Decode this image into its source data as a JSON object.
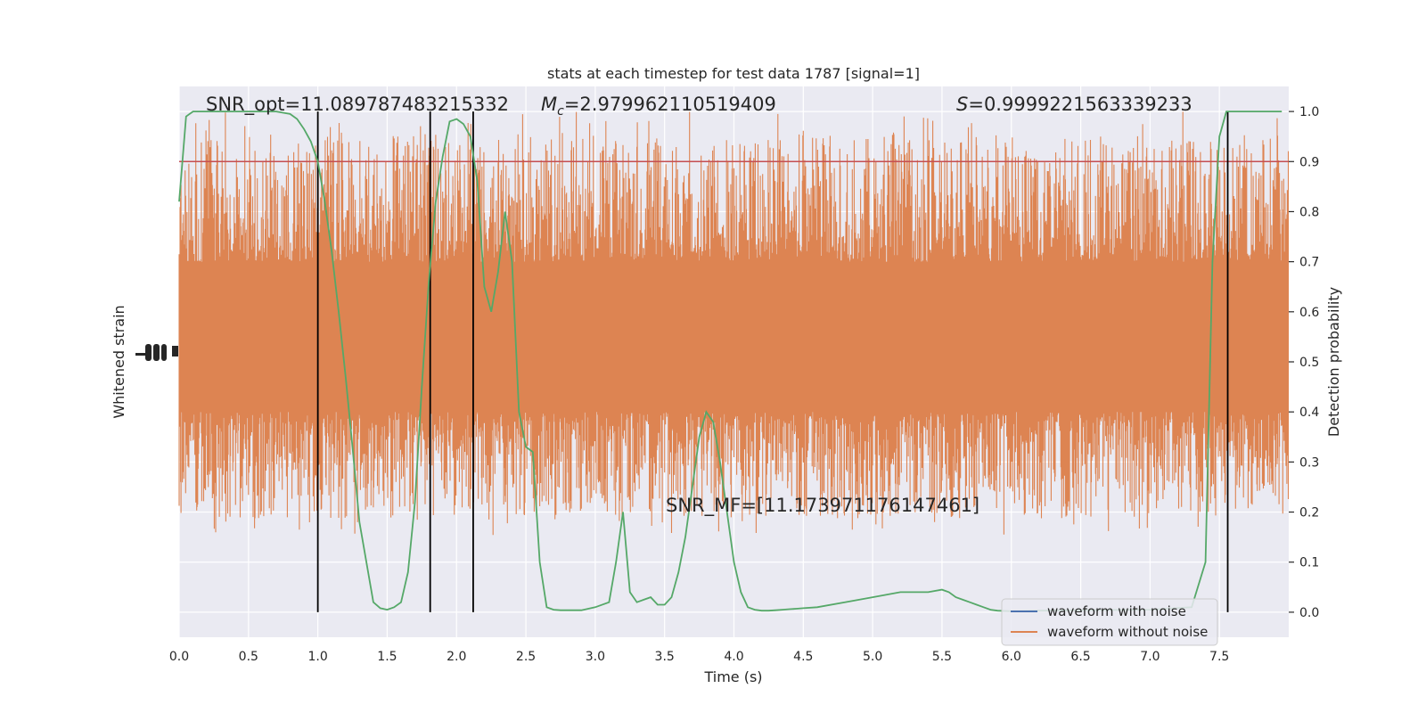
{
  "chart_data": {
    "type": "line",
    "title": "stats at each timestep for test data 1787 [signal=1]",
    "xlabel": "Time (s)",
    "ylabel_left": "Whitened strain",
    "ylabel_right": "Detection probability",
    "xlim": [
      0,
      8.0
    ],
    "ylim_right": [
      -0.05,
      1.05
    ],
    "x_ticks": [
      "0.0",
      "0.5",
      "1.0",
      "1.5",
      "2.0",
      "2.5",
      "3.0",
      "3.5",
      "4.0",
      "4.5",
      "5.0",
      "5.5",
      "6.0",
      "6.5",
      "7.0",
      "7.5"
    ],
    "y_ticks_right": [
      "0.0",
      "0.1",
      "0.2",
      "0.3",
      "0.4",
      "0.5",
      "0.6",
      "0.7",
      "0.8",
      "0.9",
      "1.0"
    ],
    "grid": true,
    "legend_position": "lower-right",
    "legend": [
      {
        "label": "waveform with noise",
        "color": "#4c72b0"
      },
      {
        "label": "waveform without noise",
        "color": "#dd8452"
      }
    ],
    "annotations": {
      "snr_opt": "SNR_opt=11.089787483215332",
      "mc": "=2.979962110519409",
      "s": "=0.9999221563339233",
      "snr_mf": "SNR_MF=[11.173971176147461]"
    },
    "annotation_symbols": {
      "mc_symbol": "M",
      "mc_sub": "c",
      "s_symbol": "S"
    },
    "threshold": {
      "y": 0.9,
      "color": "#c44e52"
    },
    "vertical_lines_x": [
      1.0,
      1.81,
      2.12,
      7.56
    ],
    "probability_series": {
      "color": "#55a868",
      "x": [
        0.0,
        0.05,
        0.1,
        0.2,
        0.3,
        0.4,
        0.5,
        0.6,
        0.7,
        0.8,
        0.85,
        0.9,
        0.95,
        1.0,
        1.05,
        1.1,
        1.15,
        1.2,
        1.25,
        1.3,
        1.35,
        1.4,
        1.45,
        1.5,
        1.55,
        1.6,
        1.65,
        1.7,
        1.75,
        1.8,
        1.85,
        1.9,
        1.95,
        2.0,
        2.05,
        2.1,
        2.15,
        2.2,
        2.25,
        2.3,
        2.35,
        2.4,
        2.45,
        2.5,
        2.55,
        2.6,
        2.65,
        2.7,
        2.75,
        2.8,
        2.9,
        3.0,
        3.1,
        3.15,
        3.2,
        3.25,
        3.3,
        3.35,
        3.4,
        3.45,
        3.5,
        3.55,
        3.6,
        3.65,
        3.7,
        3.75,
        3.8,
        3.85,
        3.9,
        3.95,
        4.0,
        4.05,
        4.1,
        4.15,
        4.2,
        4.25,
        4.3,
        4.35,
        4.4,
        4.45,
        4.5,
        4.6,
        4.8,
        5.0,
        5.2,
        5.4,
        5.5,
        5.55,
        5.6,
        5.65,
        5.7,
        5.75,
        5.8,
        5.85,
        5.9,
        6.0,
        6.2,
        6.5,
        7.0,
        7.3,
        7.4,
        7.45,
        7.5,
        7.55,
        7.6,
        7.65,
        7.7,
        7.75,
        7.8,
        7.95
      ],
      "y": [
        0.82,
        0.99,
        1.0,
        1.0,
        1.0,
        1.0,
        1.0,
        1.0,
        1.0,
        0.995,
        0.985,
        0.965,
        0.94,
        0.9,
        0.82,
        0.72,
        0.6,
        0.47,
        0.33,
        0.18,
        0.1,
        0.02,
        0.008,
        0.005,
        0.01,
        0.02,
        0.08,
        0.22,
        0.45,
        0.66,
        0.82,
        0.91,
        0.98,
        0.985,
        0.975,
        0.95,
        0.86,
        0.65,
        0.6,
        0.68,
        0.8,
        0.7,
        0.4,
        0.33,
        0.32,
        0.1,
        0.01,
        0.005,
        0.004,
        0.004,
        0.004,
        0.01,
        0.02,
        0.1,
        0.2,
        0.04,
        0.02,
        0.025,
        0.03,
        0.015,
        0.015,
        0.03,
        0.08,
        0.15,
        0.25,
        0.35,
        0.4,
        0.38,
        0.3,
        0.2,
        0.1,
        0.04,
        0.01,
        0.005,
        0.003,
        0.003,
        0.004,
        0.005,
        0.006,
        0.007,
        0.008,
        0.01,
        0.02,
        0.03,
        0.04,
        0.04,
        0.045,
        0.04,
        0.03,
        0.025,
        0.02,
        0.015,
        0.01,
        0.005,
        0.003,
        0.002,
        0.003,
        0.004,
        0.005,
        0.01,
        0.1,
        0.7,
        0.95,
        1.0,
        1.0,
        1.0,
        1.0,
        1.0,
        1.0,
        1.0
      ]
    },
    "strain_series": {
      "color": "#dd8452",
      "band_probability_range": [
        0.4,
        0.7
      ],
      "envelope_probability_range": [
        0.15,
        1.0
      ]
    }
  }
}
